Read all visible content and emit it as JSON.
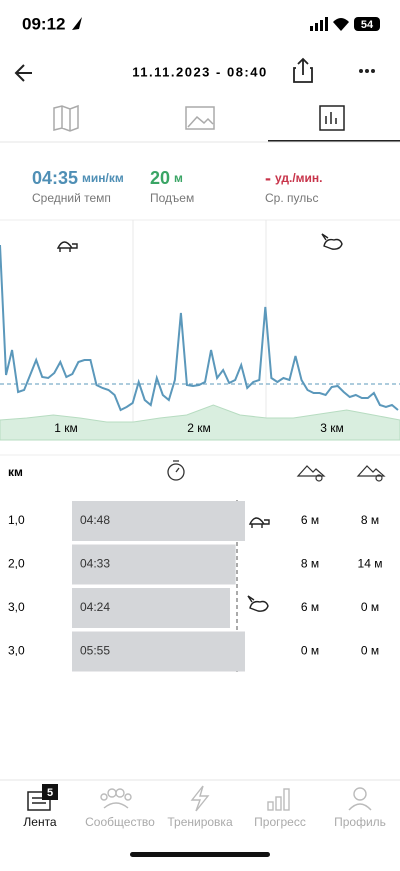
{
  "status_bar": {
    "time": "09:12",
    "battery": 54
  },
  "header": {
    "title": "11.11.2023 - 08:40"
  },
  "stats": [
    {
      "value": "04:35",
      "unit": "мин/км",
      "label": "Средний темп",
      "color": "#4f8fb5"
    },
    {
      "value": 20,
      "unit": "м",
      "label": "Подъем",
      "color": "#3aa565"
    },
    {
      "value": "-",
      "unit": "уд./мин.",
      "label": "Ср. пульс",
      "color": "#c8344a"
    }
  ],
  "chart": {
    "type": "line",
    "color": "#5b98bb",
    "elevation_color": "#d9eedf",
    "ylim": [
      0,
      220
    ],
    "values": [
      195,
      65,
      90,
      48,
      50,
      65,
      80,
      63,
      62,
      67,
      78,
      63,
      66,
      78,
      80,
      80,
      55,
      52,
      50,
      45,
      30,
      33,
      37,
      58,
      40,
      35,
      62,
      45,
      40,
      60,
      127,
      55,
      54,
      55,
      58,
      90,
      62,
      70,
      57,
      60,
      75,
      52,
      58,
      60,
      133,
      62,
      58,
      62,
      60,
      84,
      60,
      50,
      47,
      47,
      45,
      53,
      54,
      48,
      43,
      45,
      42,
      42,
      47,
      35,
      33,
      35,
      30
    ],
    "elevation": [
      20,
      22,
      25,
      22,
      18,
      18,
      22,
      25,
      35,
      25,
      22,
      22,
      26,
      30,
      25,
      20
    ],
    "average": 56,
    "km_labels": [
      "1 км",
      "2 км",
      "3 км"
    ]
  },
  "table": {
    "km_header": "км",
    "rows": [
      {
        "km": "1,0",
        "time": "04:48",
        "up": "6 м",
        "down": "8 м"
      },
      {
        "km": "2,0",
        "time": "04:33",
        "up": "8 м",
        "down": "14 м"
      },
      {
        "km": "3,0",
        "time": "04:24",
        "up": "6 м",
        "down": "0 м"
      },
      {
        "km": "3,0",
        "time": "05:55",
        "up": "0 м",
        "down": "0 м"
      }
    ]
  },
  "nav": {
    "badge": 5,
    "items": [
      "Лента",
      "Сообщество",
      "Тренировка",
      "Прогресс",
      "Профиль"
    ]
  }
}
